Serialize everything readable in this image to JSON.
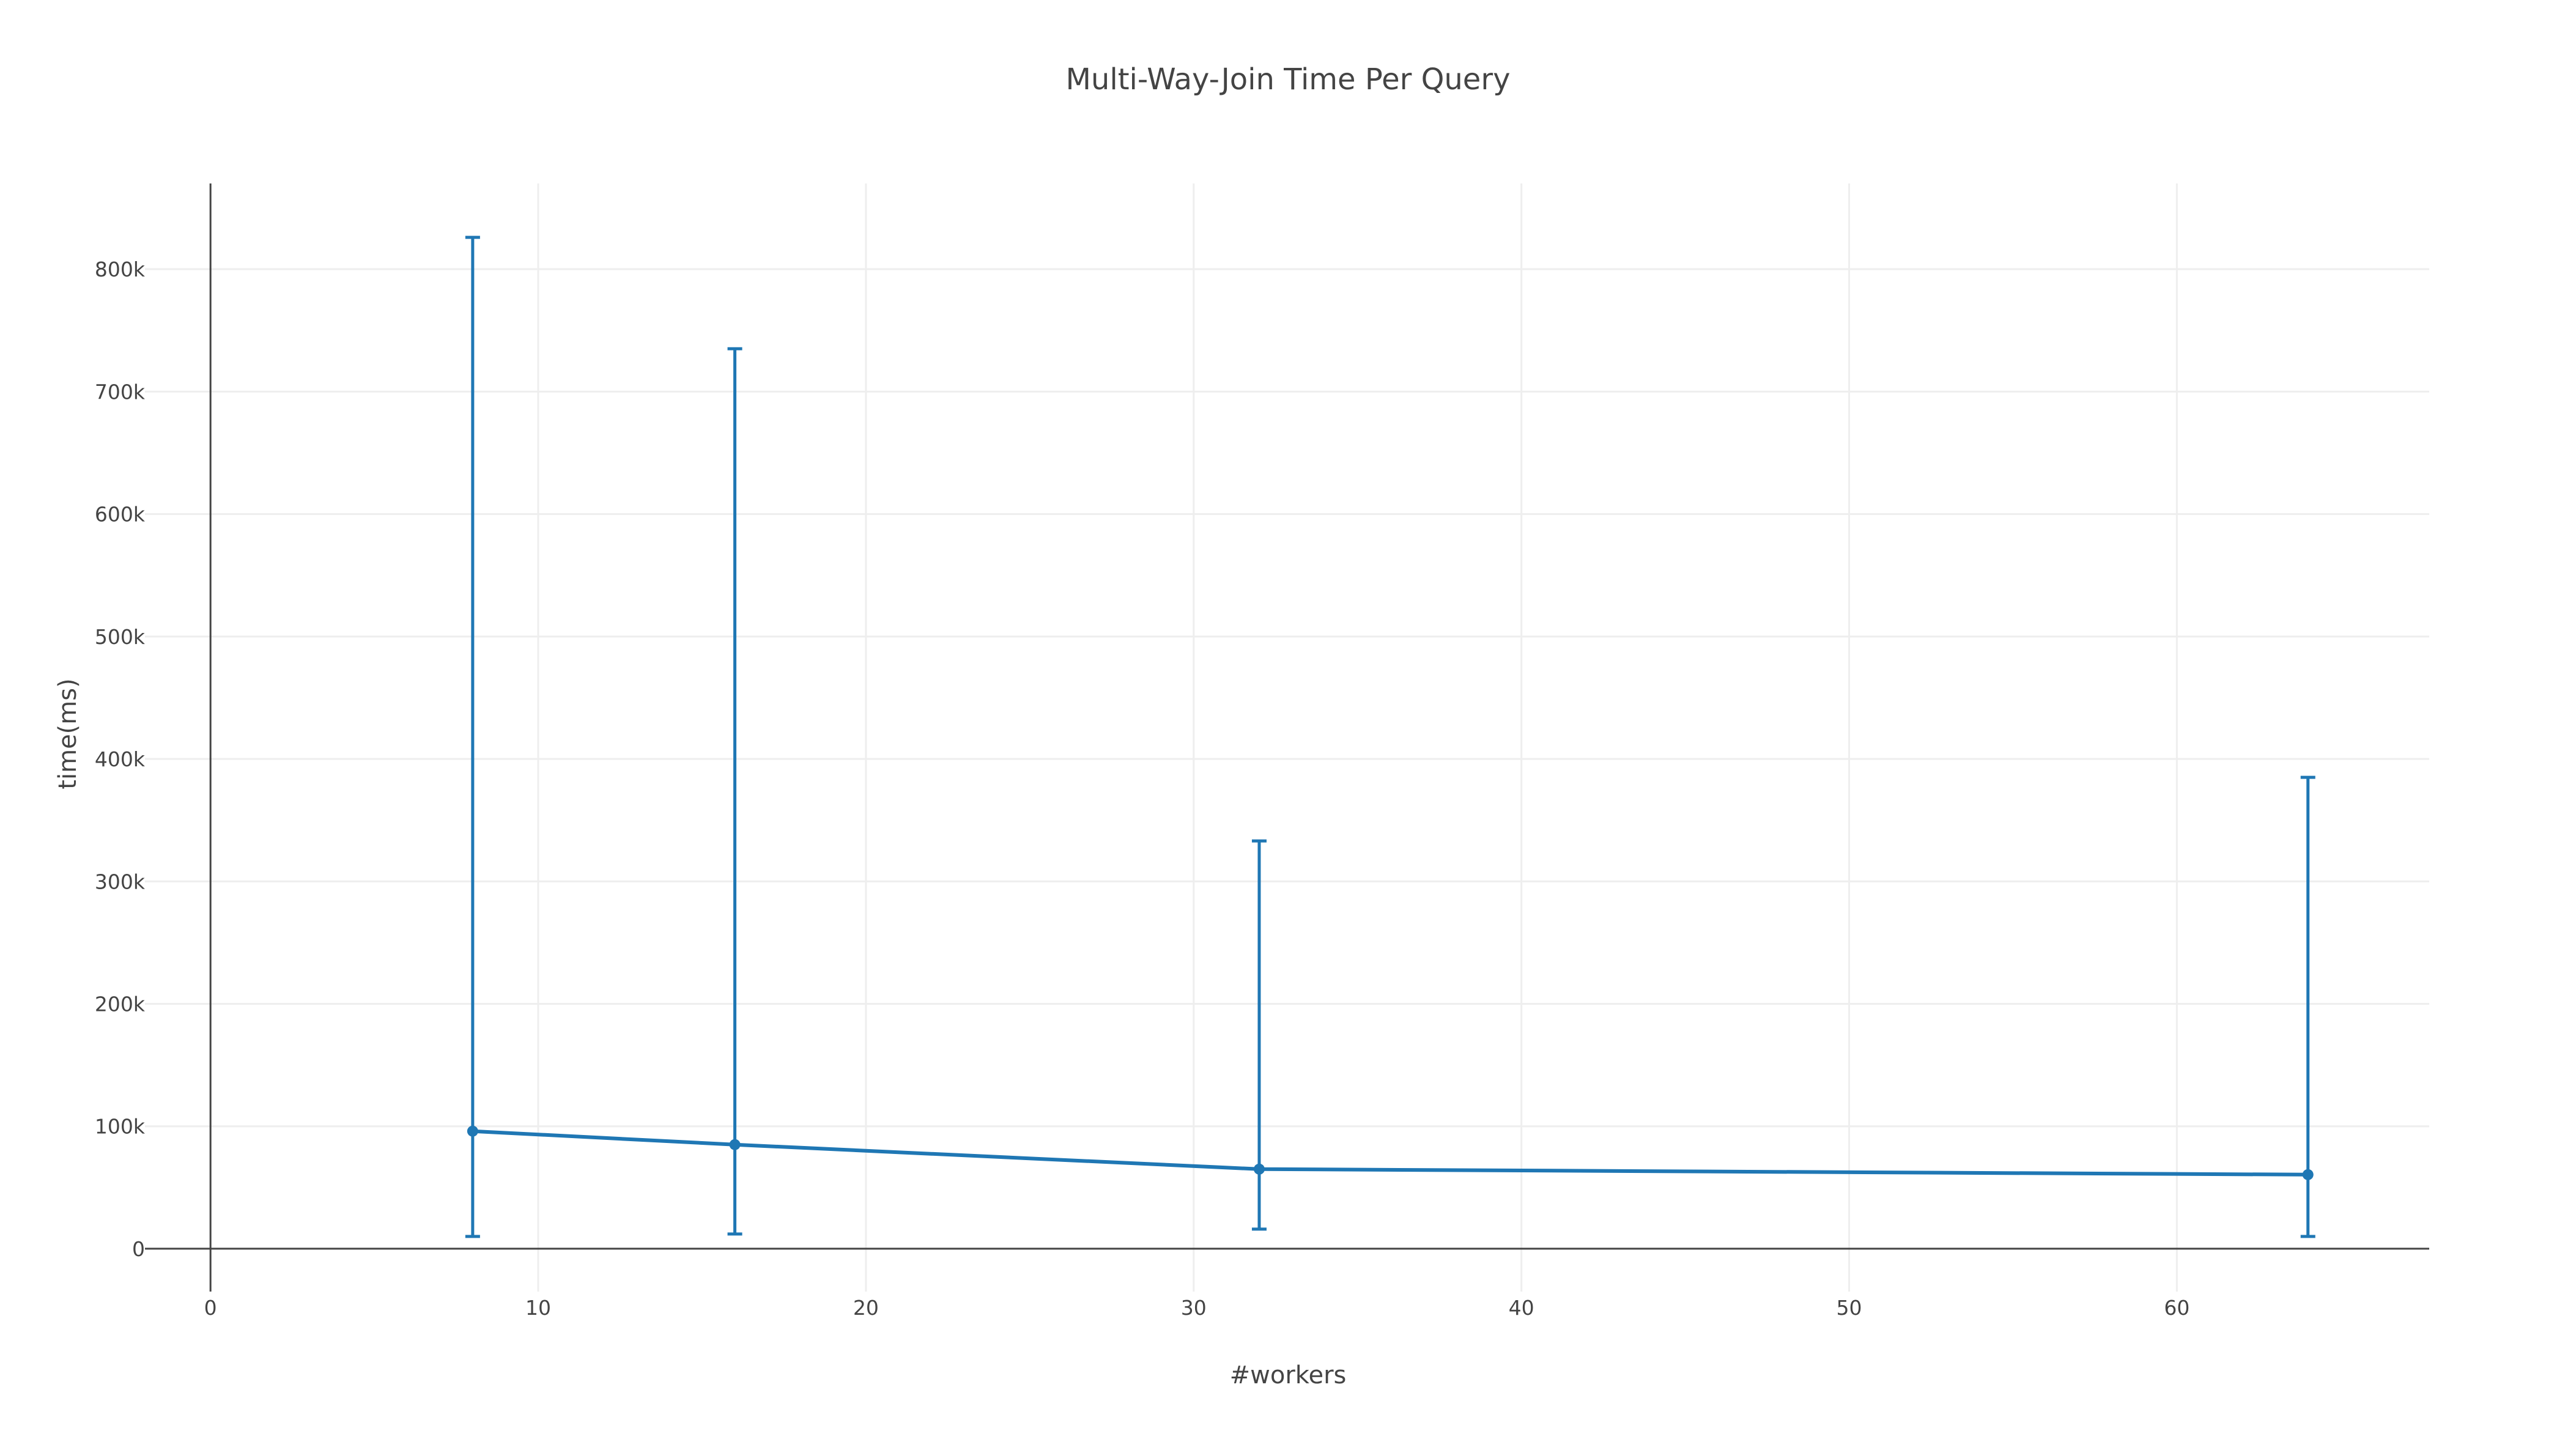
{
  "chart_data": {
    "type": "line",
    "title": "Multi-Way-Join Time Per Query",
    "xlabel": "#workers",
    "ylabel": "time(ms)",
    "xlim": [
      -2,
      67.7
    ],
    "ylim": [
      -35000,
      870000
    ],
    "x_ticks": [
      0,
      10,
      20,
      30,
      40,
      50,
      60
    ],
    "x_tick_labels": [
      "0",
      "10",
      "20",
      "30",
      "40",
      "50",
      "60"
    ],
    "y_ticks": [
      0,
      100000,
      200000,
      300000,
      400000,
      500000,
      600000,
      700000,
      800000
    ],
    "y_tick_labels": [
      "0",
      "100k",
      "200k",
      "300k",
      "400k",
      "500k",
      "600k",
      "700k",
      "800k"
    ],
    "grid": true,
    "legend": "none",
    "color": "#1f77b4",
    "series": [
      {
        "x": [
          8,
          16,
          32,
          64
        ],
        "y": [
          96000,
          85000,
          65000,
          60500
        ],
        "error_low": [
          10000,
          12000,
          16000,
          10000
        ],
        "error_high": [
          826000,
          735000,
          333000,
          385000
        ]
      }
    ]
  }
}
